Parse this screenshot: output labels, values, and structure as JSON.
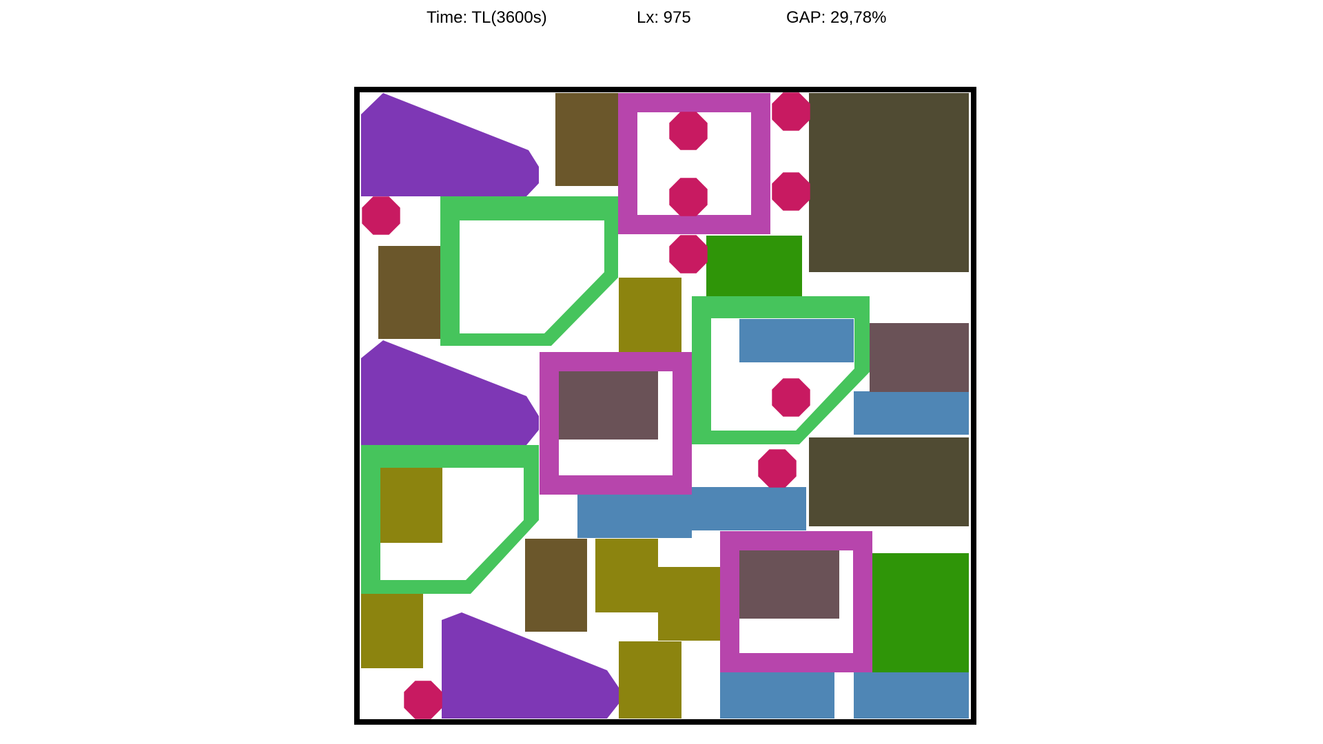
{
  "header": {
    "time": "Time: TL(3600s)",
    "lx": "Lx: 975",
    "gap": "GAP: 29,78%"
  },
  "colors": {
    "border": "#000000",
    "purple": "#7E37B5",
    "crimson": "#C81A61",
    "brown": "#6B572B",
    "magenta": "#B745AC",
    "dark_olive": "#504B33",
    "green_frame": "#46C45C",
    "green": "#2F9508",
    "olive": "#8C840F",
    "blue": "#4F86B5",
    "mauve": "#6A5257"
  }
}
